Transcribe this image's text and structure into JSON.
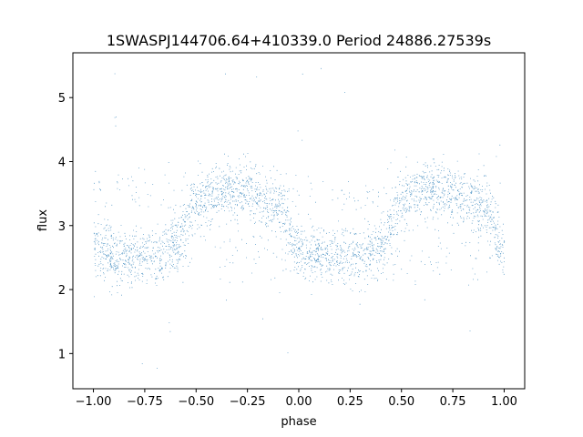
{
  "chart_data": {
    "type": "scatter",
    "title": "1SWASPJ144706.64+410339.0 Period 24886.27539s",
    "xlabel": "phase",
    "ylabel": "flux",
    "xlim": [
      -1.1,
      1.1
    ],
    "ylim": [
      0.45,
      5.7
    ],
    "x_ticks": [
      -1.0,
      -0.75,
      -0.5,
      -0.25,
      0.0,
      0.25,
      0.5,
      0.75,
      1.0
    ],
    "x_tick_labels": [
      "−1.00",
      "−0.75",
      "−0.50",
      "−0.25",
      "0.00",
      "0.25",
      "0.50",
      "0.75",
      "1.00"
    ],
    "y_ticks": [
      1,
      2,
      3,
      4,
      5
    ],
    "y_tick_labels": [
      "1",
      "2",
      "3",
      "4",
      "5"
    ],
    "grid": false,
    "legend": "none",
    "marker_color": "#1f77b4",
    "series": [
      {
        "phase_range": [
          -1.0,
          1.0
        ],
        "curve": {
          "x": [
            -1.0,
            -0.85,
            -0.7,
            -0.6,
            -0.5,
            -0.35,
            -0.25,
            -0.1,
            0.0,
            0.15,
            0.3,
            0.4,
            0.5,
            0.65,
            0.75,
            0.9,
            1.0
          ],
          "y": [
            2.6,
            2.5,
            2.5,
            2.7,
            3.4,
            3.6,
            3.5,
            3.3,
            2.6,
            2.5,
            2.5,
            2.7,
            3.4,
            3.6,
            3.5,
            3.3,
            2.6
          ]
        },
        "scatter_sigma": 0.22,
        "approx_points": 24000
      }
    ]
  }
}
